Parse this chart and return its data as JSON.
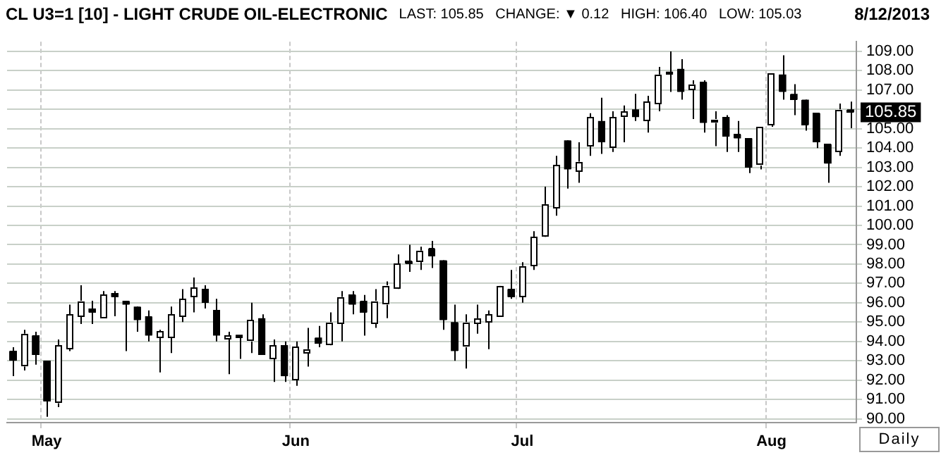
{
  "chart_data": {
    "type": "candlestick",
    "title": "CL U3=1 [10] - LIGHT CRUDE OIL-ELECTRONIC",
    "subtitle": "LAST: 105.85   CHANGE: ▼ 0.12   HIGH: 106.40   LOW: 105.03",
    "annotations": [
      "8/12/2013",
      "Daily",
      "105.85"
    ],
    "categories": [
      null,
      null,
      null,
      "May",
      null,
      null,
      null,
      null,
      null,
      null,
      null,
      null,
      null,
      null,
      null,
      null,
      null,
      null,
      null,
      null,
      null,
      null,
      null,
      null,
      null,
      "Jun",
      null,
      null,
      null,
      null,
      null,
      null,
      null,
      null,
      null,
      null,
      null,
      null,
      null,
      null,
      null,
      null,
      null,
      null,
      null,
      "Jul",
      null,
      null,
      null,
      null,
      null,
      null,
      null,
      null,
      null,
      null,
      null,
      null,
      null,
      null,
      null,
      null,
      null,
      null,
      null,
      null,
      null,
      "Aug",
      null,
      null,
      null,
      null,
      null,
      null,
      null
    ],
    "ohlc": [
      [
        93.5,
        93.7,
        92.2,
        93.0
      ],
      [
        92.7,
        94.6,
        92.5,
        94.4
      ],
      [
        94.3,
        94.5,
        92.8,
        93.3
      ],
      [
        93.0,
        93.0,
        90.1,
        90.9
      ],
      [
        90.8,
        94.1,
        90.6,
        93.8
      ],
      [
        93.6,
        95.9,
        93.5,
        95.4
      ],
      [
        95.3,
        96.9,
        94.9,
        96.1
      ],
      [
        95.7,
        96.1,
        94.9,
        95.5
      ],
      [
        95.2,
        96.6,
        95.2,
        96.4
      ],
      [
        96.5,
        96.6,
        95.3,
        96.3
      ],
      [
        96.1,
        96.1,
        93.5,
        95.9
      ],
      [
        95.8,
        95.8,
        94.5,
        95.1
      ],
      [
        95.3,
        95.6,
        94.0,
        94.3
      ],
      [
        94.2,
        94.6,
        92.4,
        94.5
      ],
      [
        94.2,
        95.8,
        93.4,
        95.4
      ],
      [
        95.3,
        96.7,
        95.0,
        96.2
      ],
      [
        96.3,
        97.3,
        95.5,
        96.8
      ],
      [
        96.7,
        96.9,
        95.7,
        96.0
      ],
      [
        95.6,
        96.2,
        94.0,
        94.3
      ],
      [
        94.1,
        94.5,
        92.3,
        94.3
      ],
      [
        94.3,
        94.3,
        93.1,
        94.2
      ],
      [
        94.0,
        96.0,
        93.4,
        95.1
      ],
      [
        95.2,
        95.4,
        93.3,
        93.3
      ],
      [
        93.1,
        94.1,
        91.9,
        93.8
      ],
      [
        93.8,
        94.0,
        91.9,
        92.2
      ],
      [
        92.0,
        94.0,
        91.7,
        93.7
      ],
      [
        93.4,
        94.7,
        92.7,
        93.6
      ],
      [
        94.2,
        94.8,
        93.7,
        93.9
      ],
      [
        93.8,
        95.5,
        93.8,
        95.0
      ],
      [
        94.9,
        96.6,
        94.0,
        96.3
      ],
      [
        96.4,
        96.6,
        95.4,
        95.9
      ],
      [
        96.1,
        96.4,
        94.3,
        95.5
      ],
      [
        94.9,
        96.7,
        94.7,
        96.1
      ],
      [
        95.9,
        97.1,
        95.2,
        96.9
      ],
      [
        96.7,
        98.5,
        96.7,
        98.0
      ],
      [
        98.1,
        99.0,
        97.6,
        98.0
      ],
      [
        98.1,
        98.9,
        97.7,
        98.7
      ],
      [
        98.8,
        99.2,
        97.8,
        98.4
      ],
      [
        98.2,
        98.2,
        94.6,
        95.1
      ],
      [
        95.0,
        95.9,
        93.0,
        93.5
      ],
      [
        93.7,
        95.4,
        92.6,
        95.0
      ],
      [
        94.9,
        95.9,
        94.4,
        95.2
      ],
      [
        95.0,
        95.6,
        93.6,
        95.4
      ],
      [
        95.3,
        96.9,
        95.3,
        96.9
      ],
      [
        96.7,
        97.7,
        96.2,
        96.3
      ],
      [
        96.3,
        98.1,
        96.0,
        97.9
      ],
      [
        97.9,
        99.7,
        97.7,
        99.4
      ],
      [
        99.4,
        102.0,
        99.4,
        101.1
      ],
      [
        100.9,
        103.6,
        100.5,
        103.1
      ],
      [
        104.4,
        104.4,
        101.9,
        102.9
      ],
      [
        102.8,
        104.3,
        102.2,
        103.3
      ],
      [
        104.1,
        105.8,
        103.6,
        105.6
      ],
      [
        105.4,
        106.6,
        103.7,
        104.3
      ],
      [
        104.0,
        105.9,
        103.8,
        105.6
      ],
      [
        105.6,
        106.2,
        104.3,
        105.9
      ],
      [
        106.0,
        106.8,
        105.4,
        105.6
      ],
      [
        105.4,
        106.7,
        104.8,
        106.4
      ],
      [
        106.3,
        108.2,
        105.9,
        107.8
      ],
      [
        107.9,
        109.0,
        106.9,
        107.8
      ],
      [
        108.1,
        108.6,
        106.5,
        106.9
      ],
      [
        107.0,
        107.5,
        105.5,
        107.3
      ],
      [
        107.4,
        107.5,
        104.8,
        105.3
      ],
      [
        105.3,
        105.9,
        104.1,
        105.5
      ],
      [
        105.6,
        105.7,
        103.8,
        104.6
      ],
      [
        104.7,
        105.4,
        103.8,
        104.5
      ],
      [
        104.5,
        104.5,
        102.7,
        103.0
      ],
      [
        103.1,
        105.1,
        102.9,
        105.1
      ],
      [
        105.2,
        107.9,
        105.1,
        107.9
      ],
      [
        107.8,
        108.8,
        106.5,
        106.9
      ],
      [
        106.8,
        107.3,
        105.7,
        106.5
      ],
      [
        106.5,
        106.5,
        104.9,
        105.2
      ],
      [
        105.8,
        105.8,
        104.0,
        104.3
      ],
      [
        104.2,
        104.2,
        102.2,
        103.2
      ],
      [
        103.8,
        106.3,
        103.6,
        106.0
      ],
      [
        106.0,
        106.4,
        105.03,
        105.85
      ]
    ],
    "colors": [
      "#000000",
      "#ffffff",
      "#000000",
      "#000000",
      "#ffffff",
      "#ffffff",
      "#ffffff",
      "#000000",
      "#ffffff",
      "#000000",
      "#000000",
      "#000000",
      "#000000",
      "#ffffff",
      "#ffffff",
      "#ffffff",
      "#ffffff",
      "#000000",
      "#000000",
      "#ffffff",
      "#000000",
      "#ffffff",
      "#000000",
      "#ffffff",
      "#000000",
      "#ffffff",
      "#ffffff",
      "#000000",
      "#ffffff",
      "#ffffff",
      "#000000",
      "#000000",
      "#ffffff",
      "#ffffff",
      "#ffffff",
      "#000000",
      "#ffffff",
      "#000000",
      "#000000",
      "#000000",
      "#ffffff",
      "#ffffff",
      "#ffffff",
      "#ffffff",
      "#000000",
      "#ffffff",
      "#ffffff",
      "#ffffff",
      "#ffffff",
      "#000000",
      "#ffffff",
      "#ffffff",
      "#000000",
      "#ffffff",
      "#ffffff",
      "#000000",
      "#ffffff",
      "#ffffff",
      "#000000",
      "#000000",
      "#ffffff",
      "#000000",
      "#ffffff",
      "#000000",
      "#000000",
      "#000000",
      "#ffffff",
      "#ffffff",
      "#000000",
      "#000000",
      "#000000",
      "#000000",
      "#000000",
      "#ffffff",
      "#000000"
    ],
    "ylim": [
      89.8,
      109.5
    ],
    "yticks": [
      {
        "value": 90,
        "label": "90.00"
      },
      {
        "value": 91,
        "label": "91.00"
      },
      {
        "value": 92,
        "label": "92.00"
      },
      {
        "value": 93,
        "label": "93.00"
      },
      {
        "value": 94,
        "label": "94.00"
      },
      {
        "value": 95,
        "label": "95.00"
      },
      {
        "value": 96,
        "label": "96.00"
      },
      {
        "value": 97,
        "label": "97.00"
      },
      {
        "value": 98,
        "label": "98.00"
      },
      {
        "value": 99,
        "label": "99.00"
      },
      {
        "value": 100,
        "label": "100.00"
      },
      {
        "value": 101,
        "label": "101.00"
      },
      {
        "value": 102,
        "label": "102.00"
      },
      {
        "value": 103,
        "label": "103.00"
      },
      {
        "value": 104,
        "label": "104.00"
      },
      {
        "value": 105,
        "label": "105.00"
      },
      {
        "value": 106,
        "label": null
      },
      {
        "value": 107,
        "label": "107.00"
      },
      {
        "value": 108,
        "label": "108.00"
      },
      {
        "value": 109,
        "label": "109.00"
      }
    ],
    "grid": true,
    "legend": false
  }
}
